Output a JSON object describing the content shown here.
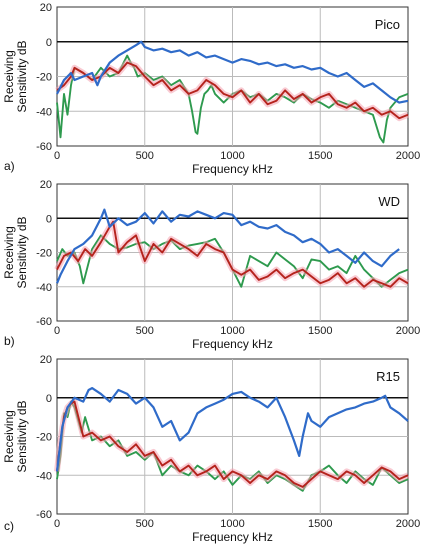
{
  "colors": {
    "blue": "#2f6bc9",
    "green": "#2e9a4e",
    "red": "#b5231d",
    "band": "#f4a0ae"
  },
  "chart_data": [
    {
      "type": "line",
      "panel_label": "a)",
      "title": "Pico",
      "xlabel": "Frequency  kHz",
      "ylabel_line1": "Receiving",
      "ylabel_line2": "Sensitivity  dB",
      "xlim": [
        0,
        2000
      ],
      "ylim": [
        -60,
        20
      ],
      "xticks": [
        "0",
        "500",
        "1000",
        "1500",
        "2000"
      ],
      "yticks": [
        "20",
        "0",
        "-20",
        "-40",
        "-60"
      ],
      "grid": true,
      "series": [
        {
          "color": "blue",
          "x": [
            0,
            40,
            80,
            100,
            150,
            200,
            230,
            250,
            300,
            350,
            400,
            450,
            480,
            500,
            550,
            600,
            650,
            700,
            750,
            800,
            850,
            900,
            950,
            1000,
            1050,
            1100,
            1150,
            1200,
            1250,
            1300,
            1350,
            1400,
            1450,
            1500,
            1550,
            1600,
            1650,
            1700,
            1750,
            1800,
            1850,
            1900,
            1950,
            2000
          ],
          "y": [
            -30,
            -22,
            -18,
            -22,
            -20,
            -18,
            -25,
            -20,
            -12,
            -8,
            -5,
            -2,
            0,
            -3,
            -5,
            -4,
            -6,
            -5,
            -8,
            -6,
            -9,
            -8,
            -10,
            -12,
            -10,
            -11,
            -13,
            -12,
            -14,
            -13,
            -15,
            -14,
            -16,
            -15,
            -18,
            -20,
            -18,
            -22,
            -26,
            -24,
            -28,
            -32,
            -35,
            -34
          ]
        },
        {
          "color": "green",
          "x": [
            0,
            20,
            40,
            60,
            80,
            100,
            150,
            200,
            250,
            300,
            350,
            400,
            420,
            440,
            460,
            500,
            550,
            600,
            650,
            700,
            750,
            770,
            790,
            800,
            820,
            840,
            860,
            880,
            900,
            950,
            1000,
            1050,
            1100,
            1150,
            1200,
            1250,
            1300,
            1350,
            1400,
            1450,
            1500,
            1550,
            1600,
            1650,
            1700,
            1750,
            1800,
            1840,
            1860,
            1880,
            1900,
            1950,
            2000
          ],
          "y": [
            -35,
            -55,
            -30,
            -42,
            -25,
            -15,
            -18,
            -22,
            -15,
            -20,
            -18,
            -8,
            -12,
            -15,
            -20,
            -18,
            -22,
            -20,
            -25,
            -22,
            -30,
            -40,
            -52,
            -53,
            -38,
            -30,
            -28,
            -25,
            -30,
            -35,
            -30,
            -28,
            -32,
            -30,
            -34,
            -30,
            -32,
            -35,
            -30,
            -33,
            -35,
            -38,
            -34,
            -36,
            -38,
            -40,
            -42,
            -55,
            -58,
            -45,
            -38,
            -32,
            -30
          ]
        },
        {
          "color": "red",
          "x": [
            0,
            40,
            80,
            100,
            150,
            200,
            250,
            300,
            350,
            400,
            450,
            500,
            550,
            600,
            650,
            700,
            750,
            800,
            850,
            900,
            950,
            1000,
            1050,
            1100,
            1150,
            1200,
            1250,
            1300,
            1350,
            1400,
            1450,
            1500,
            1550,
            1600,
            1650,
            1700,
            1750,
            1800,
            1850,
            1900,
            1950,
            2000
          ],
          "y": [
            -28,
            -25,
            -20,
            -15,
            -18,
            -22,
            -20,
            -15,
            -18,
            -12,
            -14,
            -20,
            -25,
            -22,
            -28,
            -25,
            -30,
            -28,
            -22,
            -25,
            -30,
            -32,
            -28,
            -35,
            -30,
            -36,
            -34,
            -28,
            -33,
            -30,
            -35,
            -32,
            -30,
            -36,
            -38,
            -35,
            -40,
            -38,
            -42,
            -40,
            -44,
            -42
          ]
        }
      ]
    },
    {
      "type": "line",
      "panel_label": "b)",
      "title": "WD",
      "xlabel": "Frequency  kHz",
      "ylabel_line1": "Receiving",
      "ylabel_line2": "Sensitivity  dB",
      "xlim": [
        0,
        2000
      ],
      "ylim": [
        -60,
        20
      ],
      "xticks": [
        "0",
        "500",
        "1000",
        "1500",
        "2000"
      ],
      "yticks": [
        "20",
        "0",
        "-20",
        "-40",
        "-60"
      ],
      "grid": true,
      "series": [
        {
          "color": "blue",
          "x": [
            0,
            20,
            60,
            100,
            150,
            200,
            250,
            270,
            300,
            350,
            400,
            450,
            500,
            550,
            600,
            650,
            700,
            750,
            800,
            850,
            900,
            950,
            1000,
            1050,
            1100,
            1150,
            1200,
            1250,
            1300,
            1350,
            1400,
            1450,
            1500,
            1550,
            1600,
            1650,
            1700,
            1750,
            1800,
            1850,
            1900,
            1950
          ],
          "y": [
            -38,
            -33,
            -25,
            -18,
            -15,
            -10,
            0,
            5,
            -5,
            0,
            -4,
            -2,
            3,
            -3,
            4,
            -2,
            2,
            1,
            4,
            2,
            0,
            3,
            2,
            -4,
            -2,
            -5,
            -6,
            -4,
            -8,
            -10,
            -14,
            -12,
            -15,
            -20,
            -18,
            -22,
            -26,
            -20,
            -25,
            -28,
            -22,
            -18
          ]
        },
        {
          "color": "green",
          "x": [
            0,
            30,
            60,
            100,
            130,
            150,
            200,
            250,
            300,
            350,
            400,
            450,
            500,
            550,
            600,
            650,
            700,
            750,
            800,
            850,
            900,
            950,
            1000,
            1050,
            1100,
            1150,
            1200,
            1250,
            1300,
            1350,
            1400,
            1450,
            1500,
            1550,
            1600,
            1650,
            1700,
            1750,
            1800,
            1850,
            1900,
            1950,
            2000
          ],
          "y": [
            -25,
            -18,
            -22,
            -20,
            -28,
            -38,
            -18,
            -10,
            -15,
            -18,
            -17,
            -15,
            -14,
            -18,
            -15,
            -13,
            -18,
            -16,
            -15,
            -14,
            -12,
            -20,
            -30,
            -40,
            -22,
            -25,
            -28,
            -20,
            -24,
            -28,
            -35,
            -24,
            -25,
            -30,
            -28,
            -32,
            -22,
            -30,
            -35,
            -40,
            -36,
            -32,
            -30
          ]
        },
        {
          "color": "red",
          "x": [
            0,
            40,
            80,
            120,
            160,
            200,
            250,
            300,
            320,
            350,
            400,
            450,
            500,
            550,
            600,
            650,
            700,
            750,
            800,
            850,
            900,
            950,
            1000,
            1050,
            1100,
            1150,
            1200,
            1250,
            1300,
            1350,
            1400,
            1450,
            1500,
            1550,
            1600,
            1650,
            1700,
            1750,
            1800,
            1850,
            1900,
            1950,
            2000
          ],
          "y": [
            -30,
            -22,
            -20,
            -25,
            -18,
            -22,
            -14,
            -5,
            -2,
            -20,
            -14,
            -10,
            -25,
            -15,
            -20,
            -12,
            -15,
            -18,
            -22,
            -15,
            -18,
            -20,
            -30,
            -33,
            -30,
            -36,
            -34,
            -30,
            -35,
            -32,
            -30,
            -34,
            -38,
            -36,
            -32,
            -38,
            -35,
            -40,
            -36,
            -38,
            -40,
            -35,
            -38
          ]
        }
      ]
    },
    {
      "type": "line",
      "panel_label": "c)",
      "title": "R15",
      "xlabel": "Frequency  kHz",
      "ylabel_line1": "Receiving",
      "ylabel_line2": "Sensitivity  dB",
      "xlim": [
        0,
        2000
      ],
      "ylim": [
        -60,
        20
      ],
      "xticks": [
        "0",
        "500",
        "1000",
        "1500",
        "2000"
      ],
      "yticks": [
        "20",
        "0",
        "-20",
        "-40",
        "-60"
      ],
      "grid": true,
      "series": [
        {
          "color": "blue",
          "x": [
            0,
            30,
            60,
            100,
            150,
            180,
            200,
            250,
            300,
            350,
            400,
            450,
            500,
            550,
            600,
            650,
            700,
            750,
            800,
            850,
            900,
            950,
            1000,
            1050,
            1100,
            1150,
            1200,
            1250,
            1300,
            1350,
            1380,
            1400,
            1430,
            1450,
            1500,
            1550,
            1600,
            1650,
            1700,
            1750,
            1800,
            1850,
            1870,
            1900,
            1950,
            2000
          ],
          "y": [
            -38,
            -15,
            -5,
            0,
            -2,
            4,
            5,
            2,
            -2,
            4,
            2,
            -3,
            0,
            -5,
            -15,
            -12,
            -22,
            -18,
            -8,
            -5,
            -3,
            -1,
            2,
            3,
            0,
            -2,
            -5,
            0,
            -10,
            -22,
            -30,
            -20,
            -8,
            -12,
            -15,
            -10,
            -8,
            -6,
            -5,
            -3,
            -2,
            0,
            1,
            -5,
            -8,
            -12
          ]
        },
        {
          "color": "green",
          "x": [
            0,
            20,
            40,
            60,
            80,
            100,
            140,
            160,
            200,
            250,
            300,
            350,
            400,
            450,
            500,
            550,
            600,
            650,
            700,
            750,
            800,
            850,
            900,
            950,
            1000,
            1050,
            1100,
            1150,
            1200,
            1250,
            1300,
            1350,
            1400,
            1450,
            1500,
            1550,
            1600,
            1650,
            1700,
            1750,
            1800,
            1850,
            1900,
            1950,
            2000
          ],
          "y": [
            -42,
            -30,
            -8,
            -10,
            -2,
            -5,
            -18,
            -10,
            -22,
            -20,
            -25,
            -22,
            -30,
            -28,
            -32,
            -28,
            -40,
            -35,
            -38,
            -40,
            -35,
            -38,
            -42,
            -38,
            -45,
            -40,
            -42,
            -38,
            -44,
            -40,
            -42,
            -45,
            -48,
            -40,
            -38,
            -35,
            -40,
            -44,
            -38,
            -42,
            -45,
            -36,
            -40,
            -44,
            -42
          ]
        },
        {
          "color": "red",
          "x": [
            0,
            20,
            40,
            60,
            80,
            100,
            150,
            200,
            250,
            300,
            350,
            400,
            450,
            500,
            550,
            600,
            650,
            700,
            750,
            800,
            850,
            900,
            950,
            1000,
            1050,
            1100,
            1150,
            1200,
            1250,
            1300,
            1350,
            1400,
            1450,
            1500,
            1550,
            1600,
            1650,
            1700,
            1750,
            1800,
            1850,
            1900,
            1950,
            2000
          ],
          "y": [
            -38,
            -22,
            -10,
            -5,
            -3,
            -2,
            -20,
            -18,
            -22,
            -20,
            -25,
            -28,
            -24,
            -30,
            -28,
            -35,
            -32,
            -38,
            -35,
            -40,
            -38,
            -35,
            -42,
            -38,
            -40,
            -44,
            -40,
            -42,
            -38,
            -40,
            -44,
            -46,
            -42,
            -38,
            -40,
            -42,
            -38,
            -40,
            -44,
            -40,
            -36,
            -38,
            -42,
            -40
          ]
        }
      ]
    }
  ]
}
